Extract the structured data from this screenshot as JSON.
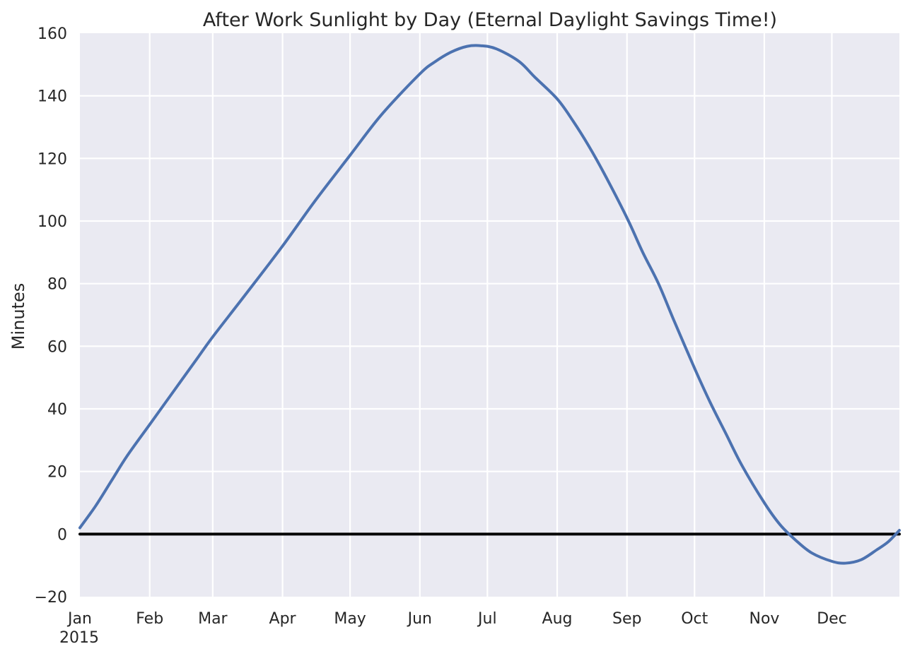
{
  "chart_data": {
    "type": "line",
    "title": "After Work Sunlight by Day (Eternal Daylight Savings Time!)",
    "xlabel": "",
    "ylabel": "Minutes",
    "ylim": [
      -20,
      160
    ],
    "xlim": [
      "2015-01-01",
      "2015-12-31"
    ],
    "x_ticks": [
      {
        "date": "2015-01-01",
        "label": "Jan"
      },
      {
        "date": "2015-02-01",
        "label": "Feb"
      },
      {
        "date": "2015-03-01",
        "label": "Mar"
      },
      {
        "date": "2015-04-01",
        "label": "Apr"
      },
      {
        "date": "2015-05-01",
        "label": "May"
      },
      {
        "date": "2015-06-01",
        "label": "Jun"
      },
      {
        "date": "2015-07-01",
        "label": "Jul"
      },
      {
        "date": "2015-08-01",
        "label": "Aug"
      },
      {
        "date": "2015-09-01",
        "label": "Sep"
      },
      {
        "date": "2015-10-01",
        "label": "Oct"
      },
      {
        "date": "2015-11-01",
        "label": "Nov"
      },
      {
        "date": "2015-12-01",
        "label": "Dec"
      }
    ],
    "x_year_label": "2015",
    "y_ticks": [
      -20,
      0,
      20,
      40,
      60,
      80,
      100,
      120,
      140,
      160
    ],
    "grid": true,
    "background": "#eaeaf2",
    "series": [
      {
        "color": "#4c72b0",
        "points": [
          {
            "x": "2015-01-01",
            "y": 2
          },
          {
            "x": "2015-01-08",
            "y": 9
          },
          {
            "x": "2015-01-15",
            "y": 17
          },
          {
            "x": "2015-01-22",
            "y": 25
          },
          {
            "x": "2015-02-01",
            "y": 35
          },
          {
            "x": "2015-02-08",
            "y": 42
          },
          {
            "x": "2015-02-15",
            "y": 49
          },
          {
            "x": "2015-02-22",
            "y": 56
          },
          {
            "x": "2015-03-01",
            "y": 63
          },
          {
            "x": "2015-03-15",
            "y": 76
          },
          {
            "x": "2015-04-01",
            "y": 92
          },
          {
            "x": "2015-04-15",
            "y": 106
          },
          {
            "x": "2015-05-01",
            "y": 121
          },
          {
            "x": "2015-05-15",
            "y": 134
          },
          {
            "x": "2015-06-01",
            "y": 147
          },
          {
            "x": "2015-06-08",
            "y": 151
          },
          {
            "x": "2015-06-15",
            "y": 154
          },
          {
            "x": "2015-06-22",
            "y": 155.8
          },
          {
            "x": "2015-06-28",
            "y": 156
          },
          {
            "x": "2015-07-05",
            "y": 155
          },
          {
            "x": "2015-07-15",
            "y": 151
          },
          {
            "x": "2015-07-22",
            "y": 146
          },
          {
            "x": "2015-08-01",
            "y": 139
          },
          {
            "x": "2015-08-08",
            "y": 132
          },
          {
            "x": "2015-08-15",
            "y": 124
          },
          {
            "x": "2015-08-22",
            "y": 115
          },
          {
            "x": "2015-09-01",
            "y": 101
          },
          {
            "x": "2015-09-08",
            "y": 90
          },
          {
            "x": "2015-09-15",
            "y": 80
          },
          {
            "x": "2015-09-22",
            "y": 68
          },
          {
            "x": "2015-10-01",
            "y": 53
          },
          {
            "x": "2015-10-08",
            "y": 42
          },
          {
            "x": "2015-10-15",
            "y": 32
          },
          {
            "x": "2015-10-22",
            "y": 22
          },
          {
            "x": "2015-11-01",
            "y": 10
          },
          {
            "x": "2015-11-08",
            "y": 3
          },
          {
            "x": "2015-11-15",
            "y": -2
          },
          {
            "x": "2015-11-22",
            "y": -6
          },
          {
            "x": "2015-12-01",
            "y": -8.7
          },
          {
            "x": "2015-12-07",
            "y": -9.3
          },
          {
            "x": "2015-12-14",
            "y": -8.2
          },
          {
            "x": "2015-12-21",
            "y": -5
          },
          {
            "x": "2015-12-26",
            "y": -2.5
          },
          {
            "x": "2015-12-31",
            "y": 1.2
          }
        ]
      },
      {
        "color": "#000000",
        "points": [
          {
            "x": "2015-01-01",
            "y": 0
          },
          {
            "x": "2015-12-31",
            "y": 0
          }
        ]
      }
    ]
  }
}
